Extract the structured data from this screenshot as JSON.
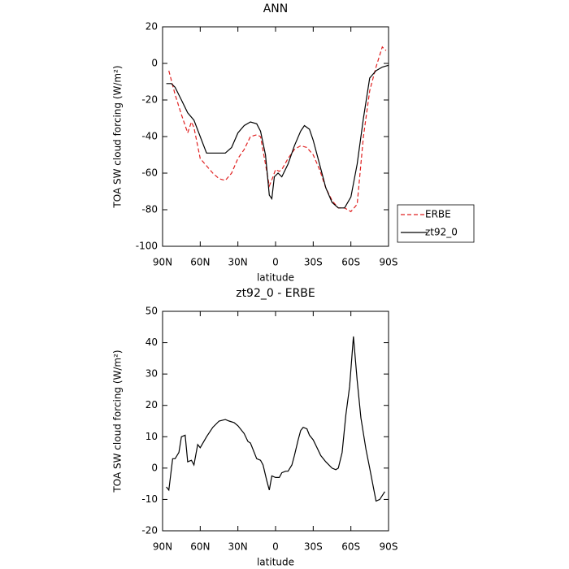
{
  "chart_data": [
    {
      "type": "line",
      "title": "ANN",
      "xlabel": "latitude",
      "ylabel": "TOA SW cloud forcing (W/m²)",
      "xlim": [
        90,
        -90
      ],
      "xticks": [
        {
          "value": 90,
          "label": "90N"
        },
        {
          "value": 60,
          "label": "60N"
        },
        {
          "value": 30,
          "label": "30N"
        },
        0,
        {
          "value": -30,
          "label": "30S"
        },
        {
          "value": -60,
          "label": "60S"
        },
        {
          "value": -90,
          "label": "90S"
        }
      ],
      "ylim": [
        -100,
        20
      ],
      "yticks": [
        -100,
        -80,
        -60,
        -40,
        -20,
        0,
        20
      ],
      "legend": "outside-right",
      "series": [
        {
          "name": "ERBE",
          "color": "#e02020",
          "dash": true,
          "x": [
            85,
            80,
            75,
            70,
            67,
            65,
            60,
            55,
            50,
            45,
            40,
            35,
            30,
            25,
            20,
            15,
            12,
            8,
            5,
            2,
            0,
            -3,
            -5,
            -10,
            -15,
            -20,
            -25,
            -30,
            -35,
            -40,
            -45,
            -50,
            -55,
            -60,
            -65,
            -70,
            -75,
            -80,
            -85,
            -88
          ],
          "values": [
            -4,
            -17,
            -28,
            -38,
            -32,
            -35,
            -52,
            -56,
            -60,
            -63,
            -64,
            -60,
            -52,
            -47,
            -40,
            -39,
            -40,
            -55,
            -67,
            -62,
            -58,
            -59,
            -58,
            -52,
            -47,
            -45,
            -46,
            -50,
            -58,
            -68,
            -75,
            -79,
            -79,
            -81,
            -77,
            -40,
            -15,
            -2,
            9,
            7
          ]
        },
        {
          "name": "zt92_0",
          "color": "#000000",
          "dash": false,
          "x": [
            87,
            83,
            80,
            75,
            70,
            65,
            60,
            55,
            50,
            45,
            40,
            35,
            30,
            25,
            20,
            15,
            12,
            8,
            5,
            3,
            1,
            -2,
            -5,
            -10,
            -15,
            -20,
            -23,
            -27,
            -30,
            -35,
            -40,
            -45,
            -50,
            -55,
            -60,
            -65,
            -70,
            -75,
            -80,
            -85,
            -90
          ],
          "values": [
            -11,
            -11,
            -13,
            -20,
            -27,
            -31,
            -40,
            -49,
            -49,
            -49,
            -49,
            -46,
            -38,
            -34,
            -32,
            -33,
            -37,
            -50,
            -72,
            -74,
            -62,
            -60,
            -62,
            -55,
            -45,
            -37,
            -34,
            -36,
            -42,
            -55,
            -68,
            -76,
            -79,
            -79,
            -73,
            -55,
            -30,
            -8,
            -4,
            -2,
            -1
          ]
        }
      ]
    },
    {
      "type": "line",
      "title": "zt92_0 - ERBE",
      "xlabel": "latitude",
      "ylabel": "TOA SW cloud forcing (W/m²)",
      "xlim": [
        90,
        -90
      ],
      "xticks": [
        {
          "value": 90,
          "label": "90N"
        },
        {
          "value": 60,
          "label": "60N"
        },
        {
          "value": 30,
          "label": "30N"
        },
        0,
        {
          "value": -30,
          "label": "30S"
        },
        {
          "value": -60,
          "label": "60S"
        },
        {
          "value": -90,
          "label": "90S"
        }
      ],
      "ylim": [
        -20,
        50
      ],
      "yticks": [
        -20,
        -10,
        0,
        10,
        20,
        30,
        40,
        50
      ],
      "series": [
        {
          "color": "#000000",
          "dash": false,
          "x": [
            87,
            85,
            82,
            80,
            77,
            75,
            72,
            70,
            67,
            65,
            62,
            60,
            55,
            50,
            45,
            40,
            37,
            33,
            30,
            25,
            22,
            20,
            15,
            12,
            10,
            7,
            5,
            3,
            0,
            -3,
            -5,
            -8,
            -10,
            -13,
            -15,
            -18,
            -20,
            -22,
            -25,
            -27,
            -30,
            -33,
            -36,
            -40,
            -45,
            -48,
            -50,
            -53,
            -56,
            -59,
            -62,
            -65,
            -68,
            -72,
            -75,
            -80,
            -83,
            -87
          ],
          "values": [
            -6,
            -7,
            3,
            3,
            5,
            10,
            10.5,
            2,
            2.5,
            1,
            7.5,
            6.5,
            10,
            13,
            15,
            15.5,
            15,
            14.5,
            13.5,
            11,
            8.5,
            8,
            3,
            2.5,
            1,
            -4,
            -7,
            -2.5,
            -3,
            -3,
            -1.5,
            -1,
            -1,
            1,
            4,
            9,
            12,
            13,
            12.5,
            10.5,
            9,
            6.5,
            4,
            2,
            0,
            -0.5,
            0,
            5,
            17,
            26,
            42,
            28,
            16,
            6,
            0,
            -10.5,
            -10,
            -7.5
          ]
        }
      ]
    }
  ]
}
